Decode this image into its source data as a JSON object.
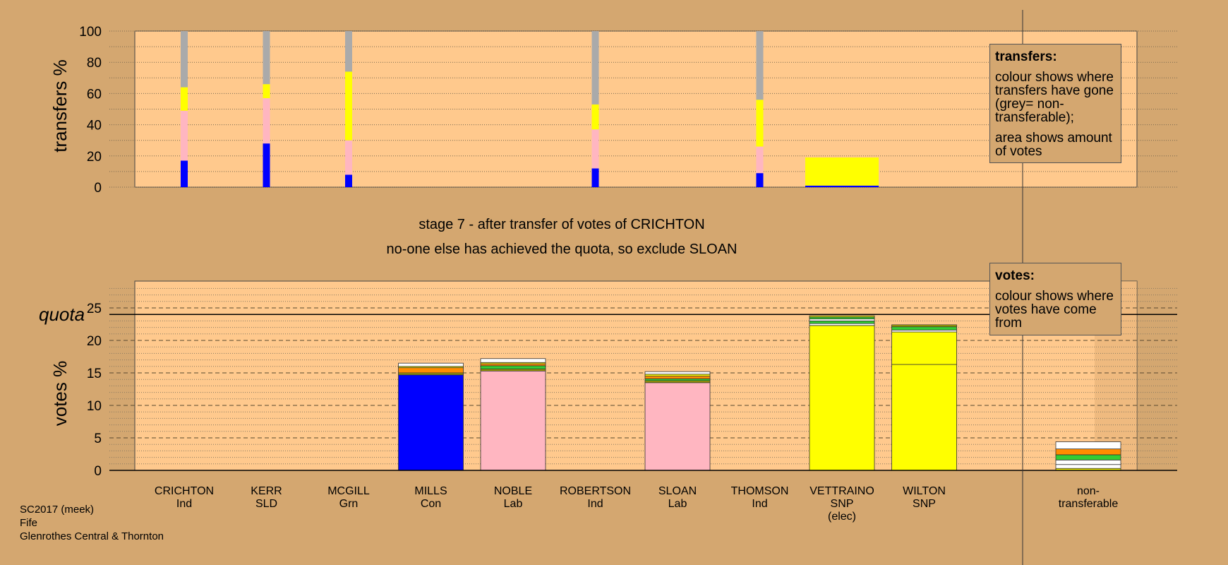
{
  "chart_data": [
    {
      "type": "bar",
      "subtype": "stacked",
      "panel": "transfers",
      "ylabel": "transfers %",
      "ylim": [
        0,
        100
      ],
      "yticks": [
        0,
        20,
        40,
        60,
        80,
        100
      ],
      "grid": true,
      "categories": [
        "CRICHTON",
        "KERR",
        "MCGILL",
        "MILLS",
        "NOBLE",
        "ROBERTSON",
        "SLOAN",
        "THOMSON",
        "VETTRAINO",
        "WILTON"
      ],
      "bars": [
        {
          "category": "CRICHTON",
          "segments": [
            {
              "color": "#0000FF",
              "value": 17
            },
            {
              "color": "#FFB6C1",
              "value": 32
            },
            {
              "color": "#FFFF00",
              "value": 15
            },
            {
              "color": "#AAAAAA",
              "value": 36
            }
          ]
        },
        {
          "category": "KERR",
          "segments": [
            {
              "color": "#0000FF",
              "value": 28
            },
            {
              "color": "#FFB6C1",
              "value": 29
            },
            {
              "color": "#FFFF00",
              "value": 9
            },
            {
              "color": "#AAAAAA",
              "value": 34
            }
          ]
        },
        {
          "category": "MCGILL",
          "segments": [
            {
              "color": "#0000FF",
              "value": 8
            },
            {
              "color": "#FFB6C1",
              "value": 22
            },
            {
              "color": "#FFFF00",
              "value": 44
            },
            {
              "color": "#AAAAAA",
              "value": 26
            }
          ]
        },
        {
          "category": "ROBERTSON",
          "segments": [
            {
              "color": "#0000FF",
              "value": 12
            },
            {
              "color": "#FFB6C1",
              "value": 25
            },
            {
              "color": "#FFFF00",
              "value": 16
            },
            {
              "color": "#AAAAAA",
              "value": 47
            }
          ]
        },
        {
          "category": "THOMSON",
          "segments": [
            {
              "color": "#0000FF",
              "value": 9
            },
            {
              "color": "#FFB6C1",
              "value": 17
            },
            {
              "color": "#FFFF00",
              "value": 30
            },
            {
              "color": "#AAAAAA",
              "value": 44
            }
          ]
        },
        {
          "category": "VETTRAINO",
          "wide": true,
          "segments": [
            {
              "color": "#0000FF",
              "value": 1
            },
            {
              "color": "#FFFF00",
              "value": 18
            }
          ]
        }
      ],
      "legend": {
        "title": "transfers:",
        "lines": [
          "colour shows where transfers have gone (grey= non-transferable);",
          "area shows amount of votes"
        ]
      }
    },
    {
      "type": "bar",
      "subtype": "stacked",
      "panel": "votes",
      "ylabel": "votes %",
      "ylim": [
        0,
        29
      ],
      "yticks": [
        0,
        5,
        10,
        15,
        20,
        25
      ],
      "grid": true,
      "quota": 24,
      "quota_label": "quota",
      "categories": [
        "CRICHTON",
        "KERR",
        "MCGILL",
        "MILLS",
        "NOBLE",
        "ROBERTSON",
        "SLOAN",
        "THOMSON",
        "VETTRAINO",
        "WILTON"
      ],
      "parties": [
        "Ind",
        "SLD",
        "Grn",
        "Con",
        "Lab",
        "Ind",
        "Lab",
        "Ind",
        "SNP",
        "SNP"
      ],
      "notes": [
        "",
        "",
        "",
        "",
        "",
        "",
        "",
        "",
        "(elec)",
        ""
      ],
      "bars": [
        {
          "category": "MILLS",
          "segments": [
            {
              "color": "#0000FF",
              "value": 14.7
            },
            {
              "color": "#A0A000",
              "value": 0.3
            },
            {
              "color": "#FF8C00",
              "value": 0.8
            },
            {
              "color": "#FFFF00",
              "value": 0.2
            },
            {
              "color": "#FFFFFF",
              "value": 0.5
            }
          ]
        },
        {
          "category": "NOBLE",
          "segments": [
            {
              "color": "#FFB6C1",
              "value": 15.3
            },
            {
              "color": "#A0A000",
              "value": 0.3
            },
            {
              "color": "#33CC33",
              "value": 0.5
            },
            {
              "color": "#FF8C00",
              "value": 0.3
            },
            {
              "color": "#FFFF00",
              "value": 0.2
            },
            {
              "color": "#FFFFFF",
              "value": 0.6
            }
          ]
        },
        {
          "category": "SLOAN",
          "segments": [
            {
              "color": "#FFB6C1",
              "value": 13.5
            },
            {
              "color": "#A0A000",
              "value": 0.3
            },
            {
              "color": "#33CC33",
              "value": 0.3
            },
            {
              "color": "#FF8C00",
              "value": 0.4
            },
            {
              "color": "#FFFF00",
              "value": 0.3
            },
            {
              "color": "#FFFFFF",
              "value": 0.4
            }
          ]
        },
        {
          "category": "VETTRAINO",
          "segments": [
            {
              "color": "#FFFF00",
              "value": 22.3
            },
            {
              "color": "#FFFFFF",
              "value": 0.3
            },
            {
              "color": "#33CC33",
              "value": 0.4
            },
            {
              "color": "#FFFFFF",
              "value": 0.3
            },
            {
              "color": "#33CC33",
              "value": 0.3
            },
            {
              "color": "#FFFF00",
              "value": 0.2
            }
          ]
        },
        {
          "category": "WILTON",
          "segments": [
            {
              "color": "#FFFF00",
              "value": 16.3
            },
            {
              "color": "#FFFF00",
              "value": 5.0
            },
            {
              "color": "#FFFFFF",
              "value": 0.3
            },
            {
              "color": "#33CC33",
              "value": 0.5
            },
            {
              "color": "#A0A000",
              "value": 0.3
            }
          ]
        },
        {
          "category": "non-transferable",
          "segments": [
            {
              "color": "#FFFF00",
              "value": 0.3
            },
            {
              "color": "#FFFFFF",
              "value": 0.6
            },
            {
              "color": "#FFFFFF",
              "value": 0.7
            },
            {
              "color": "#33CC33",
              "value": 0.8
            },
            {
              "color": "#FF8C00",
              "value": 0.9
            },
            {
              "color": "#FFFFFF",
              "value": 1.1
            }
          ]
        }
      ],
      "nontransferable_label": [
        "non-",
        "transferable"
      ],
      "legend": {
        "title": "votes:",
        "lines": [
          "colour shows where votes have come from"
        ]
      }
    }
  ],
  "title_line1": "stage 7 - after transfer of votes of CRICHTON",
  "title_line2": "no-one else has achieved the quota, so exclude SLOAN",
  "footer": [
    "SC2017 (meek)",
    "Fife",
    "Glenrothes Central & Thornton"
  ]
}
